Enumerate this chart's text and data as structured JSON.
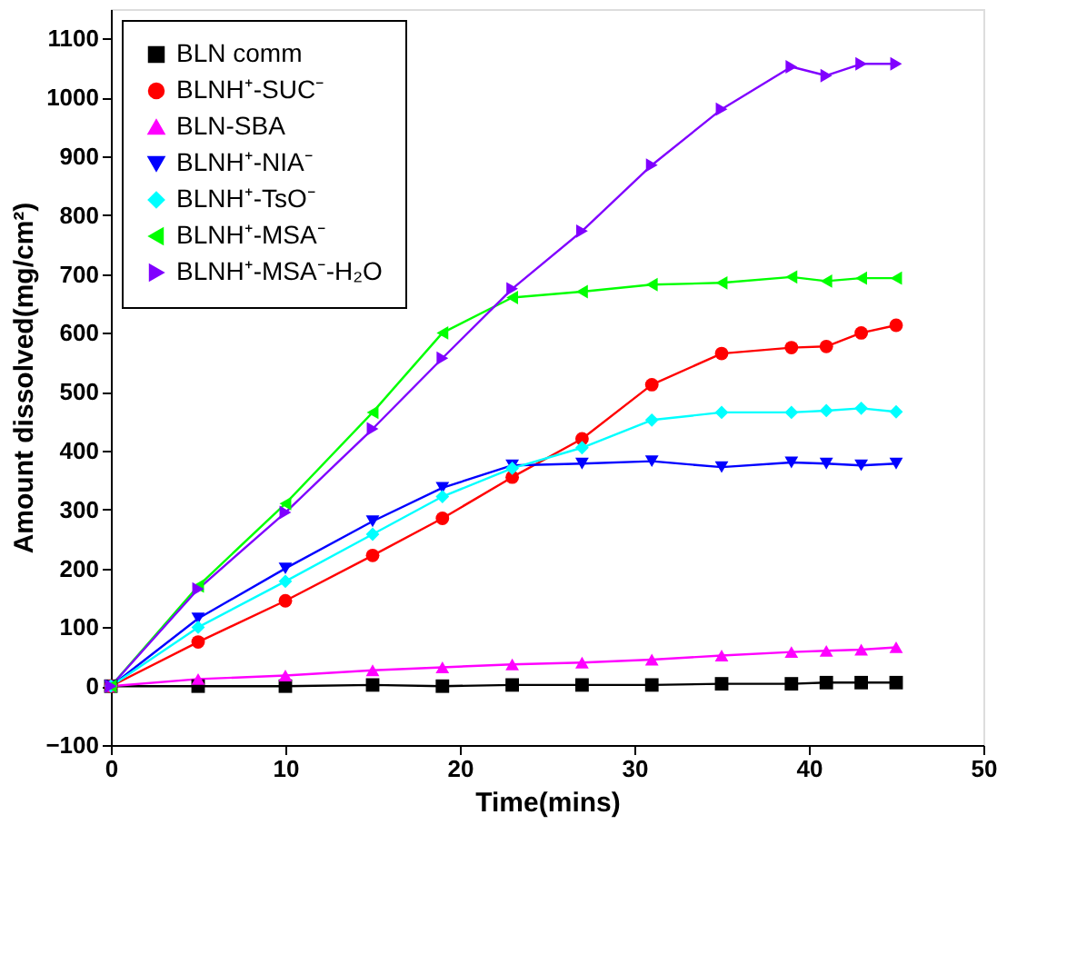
{
  "chart_data": {
    "type": "line",
    "xlabel": "Time(mins)",
    "ylabel": "Amount dissolved(mg/cm²)",
    "x": [
      0,
      5,
      10,
      15,
      19,
      23,
      27,
      31,
      35,
      39,
      41,
      43,
      45
    ],
    "xlim": [
      0,
      50
    ],
    "xticks": [
      0,
      10,
      20,
      30,
      40,
      50
    ],
    "ylim": [
      -100,
      1150
    ],
    "yticks": [
      -100,
      0,
      100,
      200,
      300,
      400,
      500,
      600,
      700,
      800,
      900,
      1000,
      1100
    ],
    "grid": false,
    "legend": "top left",
    "line_style": "solid",
    "series": [
      {
        "name": "BLN comm",
        "color": "#000000",
        "marker": "square",
        "values": [
          0,
          0,
          0,
          2,
          0,
          2,
          2,
          2,
          4,
          4,
          6,
          6,
          6
        ]
      },
      {
        "name": "BLNH⁺-SUC⁻",
        "color": "#ff0000",
        "marker": "circle",
        "values": [
          0,
          75,
          145,
          222,
          285,
          355,
          420,
          512,
          565,
          575,
          577,
          600,
          613
        ]
      },
      {
        "name": "BLN-SBA",
        "color": "#ff00ff",
        "marker": "triangle",
        "values": [
          0,
          12,
          18,
          27,
          32,
          37,
          40,
          45,
          52,
          58,
          60,
          62,
          66
        ]
      },
      {
        "name": "BLNH⁺-NIA⁻",
        "color": "#0000ff",
        "marker": "triangle-down",
        "values": [
          0,
          115,
          200,
          280,
          337,
          375,
          378,
          382,
          372,
          380,
          378,
          375,
          378
        ]
      },
      {
        "name": "BLNH⁺-TsO⁻",
        "color": "#00ffff",
        "marker": "diamond",
        "values": [
          0,
          100,
          178,
          258,
          322,
          370,
          405,
          452,
          465,
          465,
          468,
          472,
          466
        ]
      },
      {
        "name": "BLNH⁺-MSA⁻",
        "color": "#00ff00",
        "marker": "triangle-left",
        "values": [
          0,
          170,
          310,
          465,
          600,
          660,
          670,
          682,
          685,
          695,
          688,
          693,
          693
        ]
      },
      {
        "name": "BLNH⁺-MSA⁻-H₂O",
        "color": "#8000ff",
        "marker": "triangle-right",
        "values": [
          0,
          165,
          295,
          437,
          557,
          675,
          773,
          885,
          980,
          1052,
          1037,
          1057,
          1057
        ]
      }
    ]
  }
}
